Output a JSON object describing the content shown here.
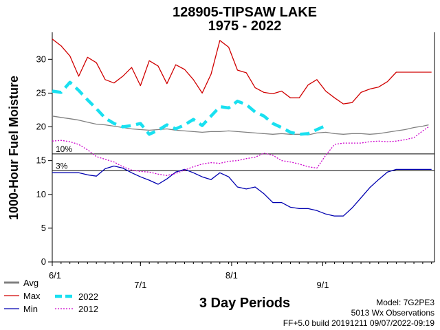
{
  "chart_data": {
    "type": "line",
    "title": "128905-TIPSAW LAKE",
    "subtitle": "1975 - 2022",
    "ylabel": "1000-Hour Fuel Moisture",
    "xlabel": "3 Day Periods",
    "ylim": [
      0,
      34
    ],
    "yticks": [
      0,
      5,
      10,
      15,
      20,
      25,
      30
    ],
    "xlim": [
      0,
      130
    ],
    "xticks": [
      {
        "label": "6/1",
        "x": 0
      },
      {
        "label": "7/1",
        "x": 30
      },
      {
        "label": "8/1",
        "x": 61
      },
      {
        "label": "9/1",
        "x": 92
      }
    ],
    "reference_lines": [
      {
        "label": "10%",
        "value": 16.0
      },
      {
        "label": "3%",
        "value": 13.5
      }
    ],
    "series": [
      {
        "name": "Avg",
        "color": "#808080",
        "style": "solid",
        "x": [
          0,
          3,
          6,
          9,
          12,
          15,
          18,
          21,
          24,
          27,
          30,
          33,
          36,
          39,
          42,
          45,
          48,
          51,
          54,
          57,
          60,
          63,
          66,
          69,
          72,
          75,
          78,
          81,
          84,
          87,
          90,
          93,
          96,
          99,
          102,
          105,
          108,
          111,
          114,
          117,
          120,
          123,
          126,
          128
        ],
        "y": [
          21.6,
          21.4,
          21.2,
          21.0,
          20.7,
          20.4,
          20.3,
          20.1,
          19.9,
          19.7,
          19.6,
          19.5,
          19.6,
          19.7,
          19.5,
          19.4,
          19.3,
          19.2,
          19.3,
          19.3,
          19.4,
          19.3,
          19.2,
          19.1,
          19.0,
          18.9,
          19.0,
          18.9,
          18.9,
          18.8,
          19.1,
          19.2,
          19.0,
          18.9,
          19.0,
          19.0,
          18.9,
          19.0,
          19.2,
          19.4,
          19.6,
          19.9,
          20.1,
          20.3
        ]
      },
      {
        "name": "Max",
        "color": "#d00000",
        "style": "solid",
        "x": [
          0,
          3,
          6,
          9,
          12,
          15,
          18,
          21,
          24,
          27,
          30,
          33,
          36,
          39,
          42,
          45,
          48,
          51,
          54,
          57,
          60,
          63,
          66,
          69,
          72,
          75,
          78,
          81,
          84,
          87,
          90,
          93,
          96,
          99,
          102,
          105,
          108,
          111,
          114,
          117,
          120,
          123,
          126,
          129
        ],
        "y": [
          33,
          32,
          30.5,
          27.5,
          30.3,
          29.5,
          27,
          26.5,
          27.5,
          28.8,
          26.1,
          29.8,
          29,
          26.4,
          29.2,
          28.5,
          27,
          25,
          27.8,
          32.8,
          31.8,
          28.4,
          28,
          25.8,
          25.1,
          24.9,
          25.3,
          24.3,
          24.3,
          26.2,
          27,
          25.3,
          24.3,
          23.4,
          23.6,
          25.1,
          25.6,
          25.9,
          26.7,
          28.1,
          28.1,
          28.1,
          28.1,
          28.1
        ]
      },
      {
        "name": "Min",
        "color": "#0000b0",
        "style": "solid",
        "x": [
          0,
          3,
          6,
          9,
          12,
          15,
          18,
          21,
          24,
          27,
          30,
          33,
          36,
          39,
          42,
          45,
          48,
          51,
          54,
          57,
          60,
          63,
          66,
          69,
          72,
          75,
          78,
          81,
          84,
          87,
          90,
          93,
          96,
          99,
          102,
          105,
          108,
          111,
          114,
          117,
          120,
          123,
          126,
          129
        ],
        "y": [
          13.2,
          13.2,
          13.2,
          13.2,
          12.9,
          12.7,
          13.8,
          14.2,
          13.9,
          13.2,
          12.6,
          12.1,
          11.5,
          12.3,
          13.3,
          13.7,
          13.2,
          12.6,
          12.2,
          13.2,
          12.6,
          11.1,
          10.8,
          11.1,
          10.1,
          8.8,
          8.8,
          8.1,
          7.9,
          7.9,
          7.6,
          7.1,
          6.8,
          6.8,
          8,
          9.5,
          11,
          12.2,
          13.3,
          13.7,
          13.7,
          13.7,
          13.7,
          13.7
        ]
      },
      {
        "name": "2022",
        "color": "#19e0f0",
        "style": "dashed",
        "x": [
          0,
          3,
          6,
          9,
          12,
          15,
          18,
          21,
          24,
          27,
          30,
          33,
          36,
          39,
          42,
          45,
          48,
          51,
          54,
          57,
          60,
          63,
          66,
          69,
          72,
          75,
          78,
          81,
          84,
          87,
          90,
          93
        ],
        "y": [
          25.3,
          25.1,
          26.6,
          25.4,
          24,
          22.7,
          21.3,
          20.5,
          20,
          20.2,
          20.5,
          18.9,
          19.5,
          20.3,
          19.7,
          20.3,
          21.1,
          20.2,
          21.6,
          23.0,
          22.8,
          23.8,
          23.3,
          22.2,
          21.6,
          20.5,
          19.9,
          19.2,
          18.9,
          19.0,
          19.6,
          20.2
        ]
      },
      {
        "name": "2012",
        "color": "#cc00cc",
        "style": "dotted",
        "x": [
          0,
          3,
          6,
          9,
          12,
          15,
          18,
          21,
          24,
          27,
          30,
          33,
          36,
          39,
          42,
          45,
          48,
          51,
          54,
          57,
          60,
          63,
          66,
          69,
          72,
          75,
          78,
          81,
          84,
          87,
          90,
          93,
          96,
          99,
          102,
          105,
          108,
          111,
          114,
          117,
          120,
          123,
          126,
          128
        ],
        "y": [
          17.9,
          18,
          17.8,
          17.4,
          16.6,
          15.6,
          15.2,
          14.8,
          14.1,
          13.6,
          13.4,
          13.3,
          13,
          12.8,
          13.1,
          13.6,
          14.1,
          14.5,
          14.7,
          14.6,
          14.9,
          15,
          15.3,
          15.5,
          16.1,
          15.8,
          15.0,
          14.8,
          14.5,
          14.1,
          13.9,
          15.8,
          17.4,
          17.6,
          17.6,
          17.6,
          17.8,
          17.9,
          17.8,
          17.9,
          18.1,
          18.4,
          19.4,
          20
        ]
      }
    ],
    "legend_position": "bottom-left",
    "grid": false
  },
  "footer": {
    "model": "Model: 7G2PE3",
    "observations": "5013 Wx Observations",
    "build": "FF+5.0 build 20191211 09/07/2022-09:19"
  }
}
